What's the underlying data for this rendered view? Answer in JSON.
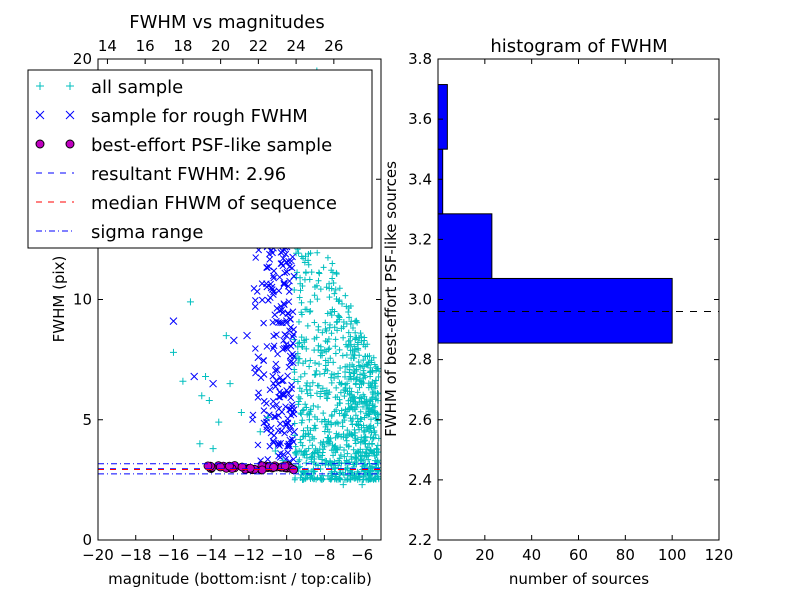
{
  "chart_data": [
    {
      "type": "scatter",
      "title": "FWHM vs magnitudes",
      "xlabel": "magnitude (bottom:isnt / top:calib)",
      "ylabel": "FWHM (pix)",
      "xlim": [
        -20,
        -5
      ],
      "ylim": [
        0,
        20
      ],
      "xticks": [
        -20,
        -18,
        -16,
        -14,
        -12,
        -10,
        -8,
        -6
      ],
      "yticks": [
        0,
        5,
        10,
        15,
        20
      ],
      "top_axis_ticks": [
        14,
        16,
        18,
        20,
        22,
        24,
        26
      ],
      "grid": false,
      "legend_position": "upper-left",
      "series": [
        {
          "name": "all sample",
          "marker": "plus",
          "color": "#00bfbf",
          "points": [
            [
              -16.0,
              7.8
            ],
            [
              -15.5,
              6.6
            ],
            [
              -15.1,
              9.9
            ],
            [
              -14.6,
              4.0
            ],
            [
              -14.5,
              6.0
            ],
            [
              -14.3,
              6.8
            ],
            [
              -14.1,
              5.8
            ],
            [
              -13.9,
              3.8
            ],
            [
              -13.6,
              4.9
            ],
            [
              -13.2,
              8.5
            ],
            [
              -13.0,
              6.5
            ],
            [
              -12.4,
              5.3
            ],
            [
              -11.4,
              4.5
            ],
            [
              -11.0,
              5.1
            ],
            [
              -10.6,
              3.7
            ],
            [
              -10.2,
              3.3
            ],
            [
              -9.0,
              11.8
            ],
            [
              -8.4,
              19.5
            ],
            [
              -8.1,
              19.1
            ],
            [
              -7.7,
              13.5
            ],
            [
              -7.4,
              10.4
            ],
            [
              -7.1,
              8.8
            ],
            [
              -6.8,
              7.2
            ],
            [
              -6.5,
              5.9
            ],
            [
              -6.2,
              4.8
            ],
            [
              -5.9,
              4.2
            ],
            [
              -5.6,
              3.6
            ],
            [
              -5.3,
              3.3
            ],
            [
              -7.0,
              2.3
            ],
            [
              -6.0,
              2.3
            ]
          ]
        },
        {
          "name": "sample for rough FWHM",
          "marker": "x",
          "color": "#0000ff",
          "points": [
            [
              -16.0,
              9.1
            ],
            [
              -14.9,
              6.8
            ],
            [
              -13.9,
              6.5
            ],
            [
              -12.8,
              8.3
            ],
            [
              -12.1,
              8.5
            ],
            [
              -11.5,
              7.6
            ],
            [
              -11.1,
              14.2
            ],
            [
              -10.8,
              10.5
            ],
            [
              -10.5,
              15.4
            ],
            [
              -10.2,
              12.0
            ],
            [
              -9.9,
              6.1
            ],
            [
              -9.6,
              4.5
            ]
          ]
        },
        {
          "name": "best-effort PSF-like sample",
          "marker": "circle",
          "color": "#bf00bf",
          "points": [
            [
              -14.0,
              2.97
            ],
            [
              -13.0,
              3.0
            ],
            [
              -12.0,
              2.98
            ],
            [
              -11.0,
              3.01
            ],
            [
              -10.0,
              2.99
            ]
          ]
        }
      ],
      "lines": [
        {
          "name": "resultant FWHM: 2.96",
          "value": 2.96,
          "color": "#0000ff",
          "style": "dashed"
        },
        {
          "name": "median FHWM of sequence",
          "value": 2.93,
          "color": "#ff0000",
          "style": "dashed"
        },
        {
          "name": "sigma range",
          "values": [
            3.17,
            2.75
          ],
          "color": "#0000ff",
          "style": "dashdot"
        }
      ]
    },
    {
      "type": "bar",
      "orientation": "horizontal",
      "title": "histogram of FWHM",
      "xlabel": "number of sources",
      "ylabel": "FWHM of best-effort PSF-like sources",
      "xlim": [
        0,
        120
      ],
      "ylim": [
        2.2,
        3.8
      ],
      "xticks": [
        0,
        20,
        40,
        60,
        80,
        100,
        120
      ],
      "yticks": [
        2.2,
        2.4,
        2.6,
        2.8,
        3.0,
        3.2,
        3.4,
        3.6,
        3.8
      ],
      "grid": false,
      "color": "#0000ff",
      "bins": [
        {
          "from": 2.855,
          "to": 3.07,
          "count": 100
        },
        {
          "from": 3.07,
          "to": 3.285,
          "count": 23
        },
        {
          "from": 3.285,
          "to": 3.5,
          "count": 2
        },
        {
          "from": 3.5,
          "to": 3.715,
          "count": 4
        }
      ],
      "reference_line": {
        "value": 2.96,
        "style": "dashed",
        "color": "#000000"
      }
    }
  ]
}
